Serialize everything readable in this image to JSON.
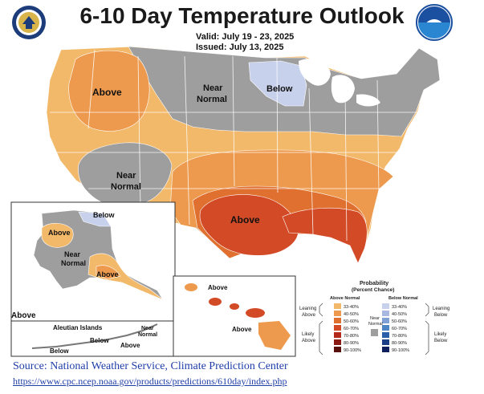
{
  "title": "6-10 Day Temperature Outlook",
  "valid_label": "Valid:",
  "valid_dates": "July 19 - 23, 2025",
  "issued_label": "Issued:",
  "issued_date": "July 13, 2025",
  "logos": {
    "left": "commerce-seal",
    "right": "noaa-logo"
  },
  "colors": {
    "above_33_40": "#F2B96B",
    "above_40_50": "#ED9A4E",
    "above_50_60": "#E07030",
    "above_60_70": "#D24A26",
    "below_33_40": "#C8D1EC",
    "near_normal": "#9E9E9E",
    "land_boundary": "#ffffff"
  },
  "map_labels": {
    "conus": {
      "above_nw": "Above",
      "near_normal_north": "Near",
      "near_normal_north2": "Normal",
      "below_ne": "Below",
      "near_normal_sw": "Near",
      "near_normal_sw2": "Normal",
      "above_south": "Above"
    },
    "alaska": {
      "below": "Below",
      "above_west": "Above",
      "near_normal": "Near",
      "near_normal2": "Normal",
      "above_south": "Above",
      "above_edge": "Above",
      "aleutian_title": "Aleutian Islands",
      "aleutian_near": "Near",
      "aleutian_normal": "Normal",
      "aleutian_below": "Below",
      "aleutian_below2": "Below",
      "aleutian_above": "Above"
    },
    "hawaii": {
      "above_top": "Above",
      "above_bottom": "Above"
    }
  },
  "legend": {
    "title": "Probability",
    "subtitle": "(Percent Chance)",
    "above_header": "Above Normal",
    "below_header": "Below Normal",
    "above_ranges": [
      "33-40%",
      "40-50%",
      "50-60%",
      "60-70%",
      "70-80%",
      "80-90%",
      "90-100%"
    ],
    "below_ranges": [
      "33-40%",
      "40-50%",
      "50-60%",
      "60-70%",
      "70-80%",
      "80-90%",
      "90-100%"
    ],
    "above_colors": [
      "#F2B96B",
      "#ED9A4E",
      "#E07030",
      "#D24A26",
      "#B5281C",
      "#8C1A14",
      "#5A100C"
    ],
    "below_colors": [
      "#C8D1EC",
      "#A9B8E0",
      "#7FA0D4",
      "#4E86C5",
      "#2B5FA8",
      "#1B3F86",
      "#0E1F5E"
    ],
    "leaning_above": "Leaning",
    "leaning_above2": "Above",
    "likely_above": "Likely",
    "likely_above2": "Above",
    "near_normal": "Near",
    "near_normal2": "Normal",
    "leaning_below": "Leaning",
    "leaning_below2": "Below",
    "likely_below": "Likely",
    "likely_below2": "Below"
  },
  "source": "Source: National Weather Service, Climate Prediction Center",
  "url": "https://www.cpc.ncep.noaa.gov/products/predictions/610day/index.php"
}
